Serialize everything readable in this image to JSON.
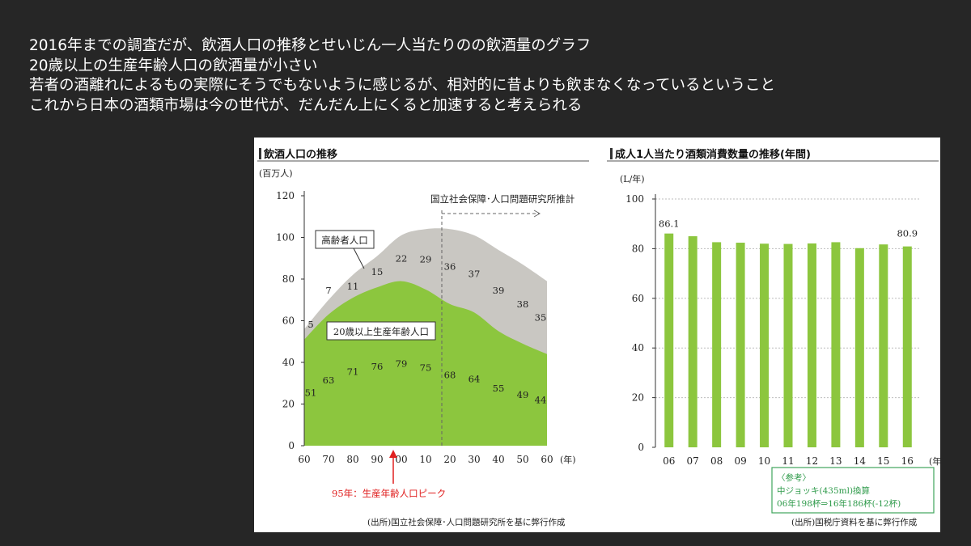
{
  "caption": {
    "lines": [
      "2016年までの調査だが、飲酒人口の推移とせいじん一人当たりのの飲酒量のグラフ",
      "20歳以上の生産年齢人口の飲酒量が小さい",
      "若者の酒離れによるもの実際にそうでもないように感じるが、相対的に昔よりも飲まなくなっているということ",
      "これから日本の酒類市場は今の世代が、だんだん上にくると加速すると考えられる"
    ]
  },
  "chart_data": [
    {
      "type": "area",
      "title": "飲酒人口の推移",
      "ylabel": "(百万人)",
      "xlabel": "(年)",
      "ylim": [
        0,
        120
      ],
      "yticks": [
        0,
        20,
        40,
        60,
        80,
        100,
        120
      ],
      "x": [
        60,
        70,
        80,
        90,
        100,
        110,
        120,
        130,
        140,
        150,
        160
      ],
      "categories": [
        "60",
        "70",
        "80",
        "90",
        "00",
        "10",
        "20",
        "30",
        "40",
        "50",
        "60"
      ],
      "series": [
        {
          "name": "20歳以上生産年齢人口",
          "values": [
            51,
            63,
            71,
            76,
            79,
            75,
            68,
            64,
            55,
            49,
            44
          ],
          "color": "#8cc63e"
        },
        {
          "name": "高齢者人口",
          "values": [
            5,
            7,
            11,
            15,
            22,
            29,
            36,
            37,
            39,
            38,
            35
          ],
          "color": "#c9c7c2"
        }
      ],
      "annotations": {
        "projection": "国立社会保障･人口問題研究所推計",
        "peak": "95年：生産年齢人口ピーク",
        "source": "(出所)国立社会保障･人口問題研究所を基に弊行作成"
      }
    },
    {
      "type": "bar",
      "title": "成人1人当たり酒類消費数量の推移(年間)",
      "ylabel": "(L/年)",
      "xlabel": "(年)",
      "ylim": [
        0,
        100
      ],
      "yticks": [
        0,
        20,
        40,
        60,
        80,
        100
      ],
      "categories": [
        "06",
        "07",
        "08",
        "09",
        "10",
        "11",
        "12",
        "13",
        "14",
        "15",
        "16"
      ],
      "values": [
        86.1,
        85.0,
        82.6,
        82.4,
        82.0,
        81.9,
        82.1,
        82.6,
        80.2,
        81.7,
        80.9
      ],
      "data_labels": {
        "first": "86.1",
        "last": "80.9"
      },
      "color": "#8cc63e",
      "note": {
        "title": "〈参考〉",
        "line1": "中ジョッキ(435ml)換算",
        "line2": "06年198杯⇒16年186杯(-12杯)"
      },
      "source": "(出所)国税庁資料を基に弊行作成"
    }
  ]
}
